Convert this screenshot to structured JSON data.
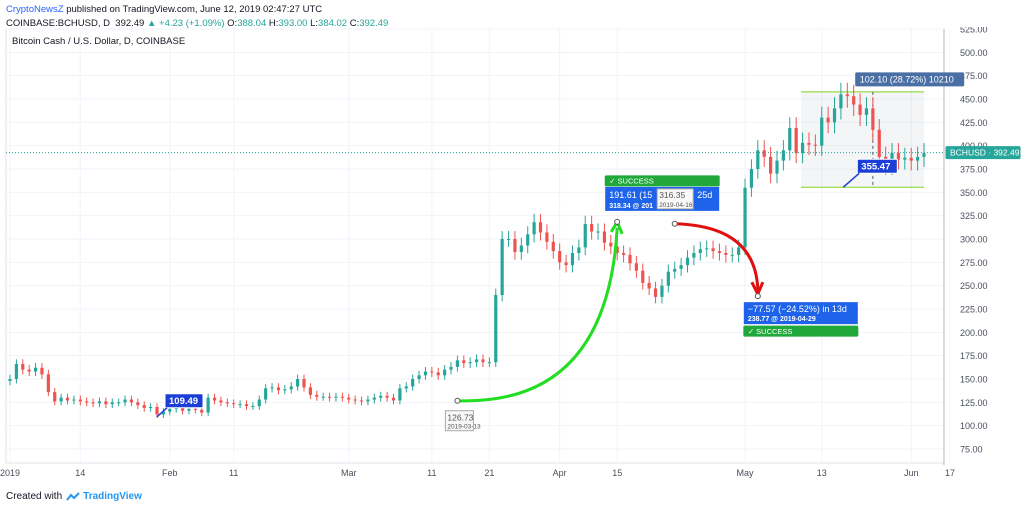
{
  "header": {
    "author": "CryptoNewsZ",
    "published": "published on TradingView.com, June 12, 2019 02:47:27 UTC",
    "symbol": "COINBASE:BCHUSD, D",
    "price": "392.49",
    "change": "▲ +4.23 (+1.09%)",
    "o_label": "O:",
    "o": "388.04",
    "h_label": "H:",
    "h": "393.00",
    "l_label": "L:",
    "l": "384.02",
    "c_label": "C:",
    "c": "392.49"
  },
  "footer": {
    "created_with": "Created with",
    "brand": "TradingView"
  },
  "colors": {
    "up": "#26a69a",
    "down": "#ef5350",
    "accent": "#2962ff",
    "success": "#21a83a",
    "arrow_up": "#22dd22",
    "arrow_down": "#e01010"
  },
  "chart_data": {
    "type": "candlestick",
    "title": "Bitcoin Cash / U.S. Dollar, D, COINBASE",
    "ylim": [
      60,
      525
    ],
    "y_ticks": [
      "525.00",
      "500.00",
      "475.00",
      "450.00",
      "425.00",
      "400.00",
      "375.00",
      "350.00",
      "325.00",
      "300.00",
      "275.00",
      "250.00",
      "225.00",
      "200.00",
      "175.00",
      "150.00",
      "125.00",
      "100.00",
      "75.00"
    ],
    "x_ticks": [
      "2019",
      "14",
      "Feb",
      "11",
      "Mar",
      "11",
      "21",
      "Apr",
      "15",
      "May",
      "13",
      "Jun",
      "17"
    ],
    "last_price_label": "BCHUSD · 392.49",
    "last_price": 392.49,
    "grid": true,
    "closes": [
      150,
      166,
      160,
      158,
      162,
      155,
      136,
      126,
      130,
      127,
      128,
      126,
      125,
      124,
      126,
      123,
      125,
      125,
      128,
      125,
      122,
      119,
      120,
      112,
      115,
      118,
      120,
      116,
      118,
      117,
      114,
      130,
      127,
      125,
      124,
      123,
      123,
      121,
      121,
      128,
      140,
      141,
      138,
      139,
      142,
      150,
      141,
      133,
      131,
      131,
      130,
      131,
      130,
      128,
      127,
      126,
      128,
      130,
      132,
      130,
      127,
      140,
      142,
      150,
      154,
      158,
      157,
      154,
      160,
      163,
      170,
      167,
      168,
      171,
      168,
      168,
      240,
      300,
      300,
      286,
      293,
      305,
      318,
      307,
      297,
      287,
      275,
      272,
      285,
      291,
      316,
      308,
      308,
      296,
      292,
      285,
      283,
      274,
      266,
      253,
      247,
      238,
      250,
      265,
      268,
      272,
      280,
      285,
      289,
      290,
      287,
      285,
      283,
      283,
      291,
      355,
      375,
      395,
      388,
      370,
      384,
      395,
      419,
      392,
      403,
      401,
      400,
      430,
      425,
      440,
      455,
      453,
      444,
      433,
      440,
      417,
      388,
      379,
      392,
      385,
      387,
      384,
      388,
      392
    ],
    "annotations": [
      {
        "label": "109.49",
        "x_index": 23,
        "y": 109.49
      },
      {
        "label": "126.73",
        "date": "2019-03-13",
        "x_index": 70,
        "y": 126.73
      },
      {
        "label": "191.61 (15",
        "suffix": "25d",
        "sub": "318.34  @ 201",
        "x_index": 95,
        "y": 318.34
      },
      {
        "label": "316.35",
        "date": "2019-04-16",
        "x_index": 104,
        "y": 316.35
      },
      {
        "label": "SUCCESS"
      },
      {
        "label": "−77.57 (−24.52%) in 13d",
        "sub": "238.77  @ 2019-04-29",
        "x_index": 117,
        "y": 238.77
      },
      {
        "label": "SUCCESS"
      },
      {
        "label": "355.47",
        "x_index": 131,
        "y": 355.47
      },
      {
        "label": "102.10 (28.72%) 10210",
        "range": [
          355.47,
          457.57
        ]
      }
    ]
  }
}
